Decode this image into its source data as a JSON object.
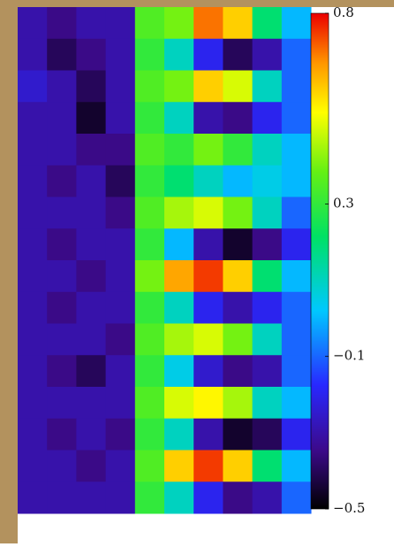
{
  "chart_data": {
    "type": "heatmap",
    "colormap": "jet",
    "clim": [
      -0.5,
      0.8
    ],
    "cticks": [
      {
        "value": 0.8,
        "label": "0.8"
      },
      {
        "value": 0.3,
        "label": "0.3"
      },
      {
        "value": -0.1,
        "label": "−0.1"
      },
      {
        "value": -0.5,
        "label": "−0.5"
      }
    ],
    "z": [
      [
        -0.3,
        -0.35,
        -0.3,
        -0.3,
        0.35,
        0.4,
        0.7,
        0.6,
        0.2,
        0.0
      ],
      [
        -0.3,
        -0.4,
        -0.35,
        -0.3,
        0.3,
        0.1,
        -0.2,
        -0.4,
        -0.3,
        -0.1
      ],
      [
        -0.25,
        -0.3,
        -0.4,
        -0.3,
        0.35,
        0.4,
        0.6,
        0.5,
        0.1,
        -0.1
      ],
      [
        -0.3,
        -0.3,
        -0.45,
        -0.3,
        0.3,
        0.1,
        -0.3,
        -0.35,
        -0.2,
        -0.1
      ],
      [
        -0.3,
        -0.3,
        -0.35,
        -0.35,
        0.35,
        0.3,
        0.4,
        0.3,
        0.1,
        0.0
      ],
      [
        -0.3,
        -0.35,
        -0.3,
        -0.4,
        0.3,
        0.2,
        0.1,
        0.0,
        0.05,
        0.0
      ],
      [
        -0.3,
        -0.3,
        -0.3,
        -0.35,
        0.35,
        0.45,
        0.5,
        0.4,
        0.1,
        -0.1
      ],
      [
        -0.3,
        -0.35,
        -0.3,
        -0.3,
        0.3,
        0.0,
        -0.3,
        -0.45,
        -0.35,
        -0.2
      ],
      [
        -0.3,
        -0.3,
        -0.35,
        -0.3,
        0.4,
        0.65,
        0.75,
        0.6,
        0.2,
        0.0
      ],
      [
        -0.3,
        -0.35,
        -0.3,
        -0.3,
        0.3,
        0.1,
        -0.2,
        -0.3,
        -0.2,
        -0.1
      ],
      [
        -0.3,
        -0.3,
        -0.3,
        -0.35,
        0.35,
        0.45,
        0.5,
        0.4,
        0.1,
        -0.1
      ],
      [
        -0.3,
        -0.35,
        -0.4,
        -0.3,
        0.3,
        0.05,
        -0.25,
        -0.35,
        -0.3,
        -0.1
      ],
      [
        -0.3,
        -0.3,
        -0.3,
        -0.3,
        0.35,
        0.5,
        0.55,
        0.45,
        0.1,
        0.0
      ],
      [
        -0.3,
        -0.35,
        -0.3,
        -0.35,
        0.3,
        0.1,
        -0.3,
        -0.45,
        -0.4,
        -0.2
      ],
      [
        -0.3,
        -0.3,
        -0.35,
        -0.3,
        0.35,
        0.6,
        0.75,
        0.6,
        0.2,
        0.0
      ],
      [
        -0.3,
        -0.3,
        -0.3,
        -0.3,
        0.3,
        0.1,
        -0.2,
        -0.35,
        -0.3,
        -0.1
      ]
    ]
  }
}
